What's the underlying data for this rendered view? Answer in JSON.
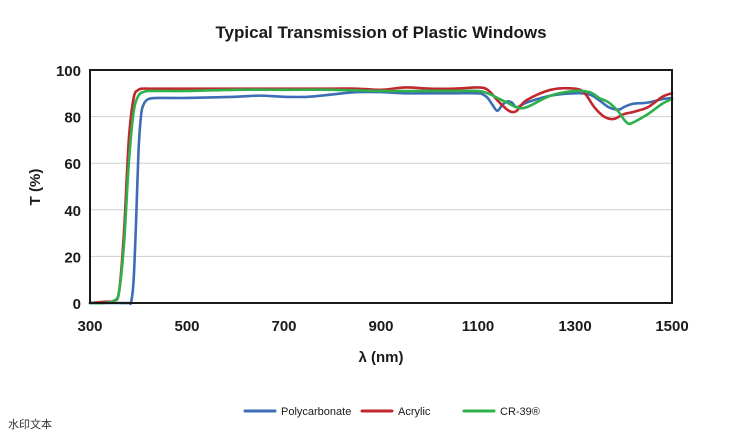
{
  "chart_data": {
    "type": "line",
    "title": "Typical Transmission of Plastic Windows",
    "xlabel": "λ (nm)",
    "ylabel": "T (%)",
    "xlim": [
      300,
      1500
    ],
    "ylim": [
      0,
      100
    ],
    "xticks": [
      300,
      500,
      700,
      900,
      1100,
      1300,
      1500
    ],
    "yticks": [
      0,
      20,
      40,
      60,
      80,
      100
    ],
    "grid": "horizontal",
    "legend": "bottom",
    "series": [
      {
        "name": "Polycarbonate",
        "color": "#3d6db5",
        "x": [
          300,
          330,
          360,
          380,
          385,
          390,
          395,
          400,
          405,
          410,
          420,
          440,
          500,
          600,
          650,
          700,
          750,
          800,
          850,
          900,
          950,
          1000,
          1050,
          1100,
          1110,
          1120,
          1130,
          1140,
          1150,
          1160,
          1170,
          1180,
          1200,
          1250,
          1300,
          1330,
          1350,
          1370,
          1390,
          1400,
          1420,
          1450,
          1480,
          1500
        ],
        "y": [
          0,
          0,
          0,
          0,
          0.5,
          10,
          35,
          65,
          80,
          85,
          87.5,
          88,
          88,
          88.5,
          89,
          88.5,
          88.5,
          89.5,
          90.5,
          90.5,
          90,
          90,
          90,
          90,
          89.5,
          88,
          85,
          82.5,
          85,
          86.5,
          86,
          84,
          86,
          89,
          90,
          89.5,
          87,
          84,
          83,
          84,
          85.5,
          86,
          87.5,
          88
        ]
      },
      {
        "name": "Acrylic",
        "color": "#c2272d",
        "x": [
          300,
          330,
          350,
          360,
          370,
          380,
          390,
          400,
          410,
          420,
          450,
          500,
          600,
          700,
          800,
          850,
          900,
          950,
          1000,
          1050,
          1100,
          1120,
          1140,
          1160,
          1170,
          1180,
          1200,
          1250,
          1300,
          1320,
          1340,
          1360,
          1380,
          1400,
          1420,
          1450,
          1480,
          1500
        ],
        "y": [
          0,
          0.5,
          1,
          5,
          30,
          70,
          88,
          91.5,
          92,
          92,
          92,
          92,
          92,
          92,
          92,
          92,
          91.5,
          92.5,
          92,
          92,
          92.5,
          91.5,
          87,
          83,
          82,
          82.5,
          87,
          91.5,
          92,
          90,
          84,
          80,
          79,
          81,
          82,
          84,
          88.5,
          90
        ]
      },
      {
        "name": "CR-39®",
        "color": "#2eb04a",
        "x": [
          300,
          330,
          350,
          360,
          370,
          380,
          390,
          400,
          410,
          420,
          450,
          500,
          600,
          700,
          800,
          900,
          1000,
          1050,
          1100,
          1120,
          1140,
          1160,
          1180,
          1200,
          1250,
          1300,
          1330,
          1350,
          1370,
          1390,
          1400,
          1410,
          1420,
          1450,
          1480,
          1500
        ],
        "y": [
          0,
          0,
          1,
          5,
          25,
          60,
          82,
          89,
          90.5,
          91,
          91,
          91,
          91.5,
          91.5,
          91.5,
          91,
          91,
          91,
          91,
          90,
          88,
          86,
          84,
          84,
          89,
          91,
          90.5,
          88,
          86,
          82,
          79,
          77,
          77.5,
          81,
          85.5,
          87.5
        ]
      }
    ]
  },
  "watermark": "水印文本"
}
